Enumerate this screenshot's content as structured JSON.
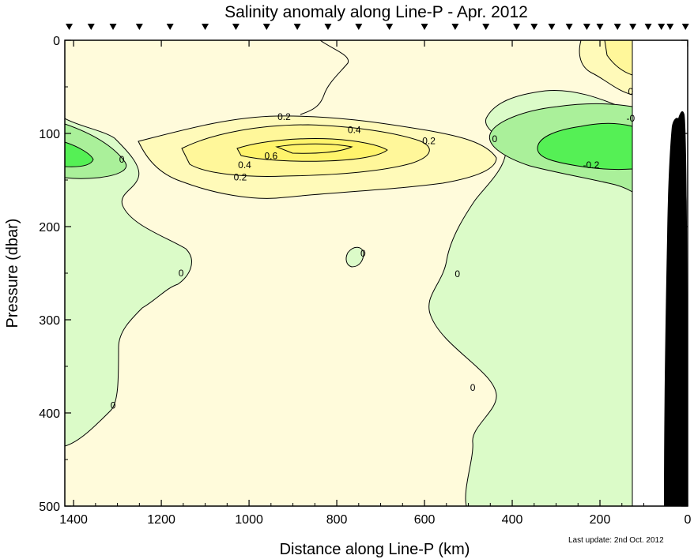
{
  "chart_data": {
    "type": "contour",
    "title": "Salinity anomaly along Line-P - Apr. 2012",
    "xlabel": "Distance along Line-P (km)",
    "ylabel": "Pressure (dbar)",
    "xlim": [
      1420,
      0
    ],
    "ylim": [
      0,
      500
    ],
    "x_reversed": true,
    "y_reversed": true,
    "x_ticks": [
      1400,
      1200,
      1000,
      800,
      600,
      400,
      200,
      0
    ],
    "y_ticks": [
      0,
      100,
      200,
      300,
      400,
      500
    ],
    "station_markers_km": [
      1410,
      1360,
      1310,
      1250,
      1180,
      1100,
      1030,
      960,
      890,
      820,
      750,
      680,
      600,
      530,
      460,
      390,
      350,
      310,
      270,
      230,
      200,
      160,
      125,
      90,
      60,
      40,
      5
    ],
    "contour_levels": [
      -0.2,
      0,
      0.2,
      0.4,
      0.6
    ],
    "contour_labels": [
      {
        "x": 920,
        "y": 82,
        "text": "0.2"
      },
      {
        "x": 760,
        "y": 96,
        "text": "0.4"
      },
      {
        "x": 950,
        "y": 124,
        "text": "0.6"
      },
      {
        "x": 1010,
        "y": 134,
        "text": "0.4"
      },
      {
        "x": 1020,
        "y": 147,
        "text": "0.2"
      },
      {
        "x": 590,
        "y": 108,
        "text": "0.2"
      },
      {
        "x": 1290,
        "y": 128,
        "text": "0"
      },
      {
        "x": 440,
        "y": 106,
        "text": "0"
      },
      {
        "x": 130,
        "y": 55,
        "text": "0"
      },
      {
        "x": 130,
        "y": 84,
        "text": "-0"
      },
      {
        "x": 220,
        "y": 134,
        "text": "-0.2"
      },
      {
        "x": 1155,
        "y": 250,
        "text": "0"
      },
      {
        "x": 1310,
        "y": 392,
        "text": "0"
      },
      {
        "x": 525,
        "y": 251,
        "text": "0"
      },
      {
        "x": 490,
        "y": 373,
        "text": "0"
      },
      {
        "x": 740,
        "y": 229,
        "text": "0"
      }
    ],
    "fill_colors": {
      "below_neg0_2": "#55f055",
      "neg0_2_to_0": "#aaf09a",
      "zero_to_0_2_low": "#dbfbc8",
      "zero_to_0_2": "#fffbdb",
      "b0_2_to_0_4": "#fffab9",
      "b0_4_to_0_6": "#fff79a",
      "above_0_6": "#fff46c",
      "bathymetry": "#000000"
    },
    "grid": false,
    "legend": "none"
  },
  "footnote": "Last update: 2nd Oct. 2012"
}
